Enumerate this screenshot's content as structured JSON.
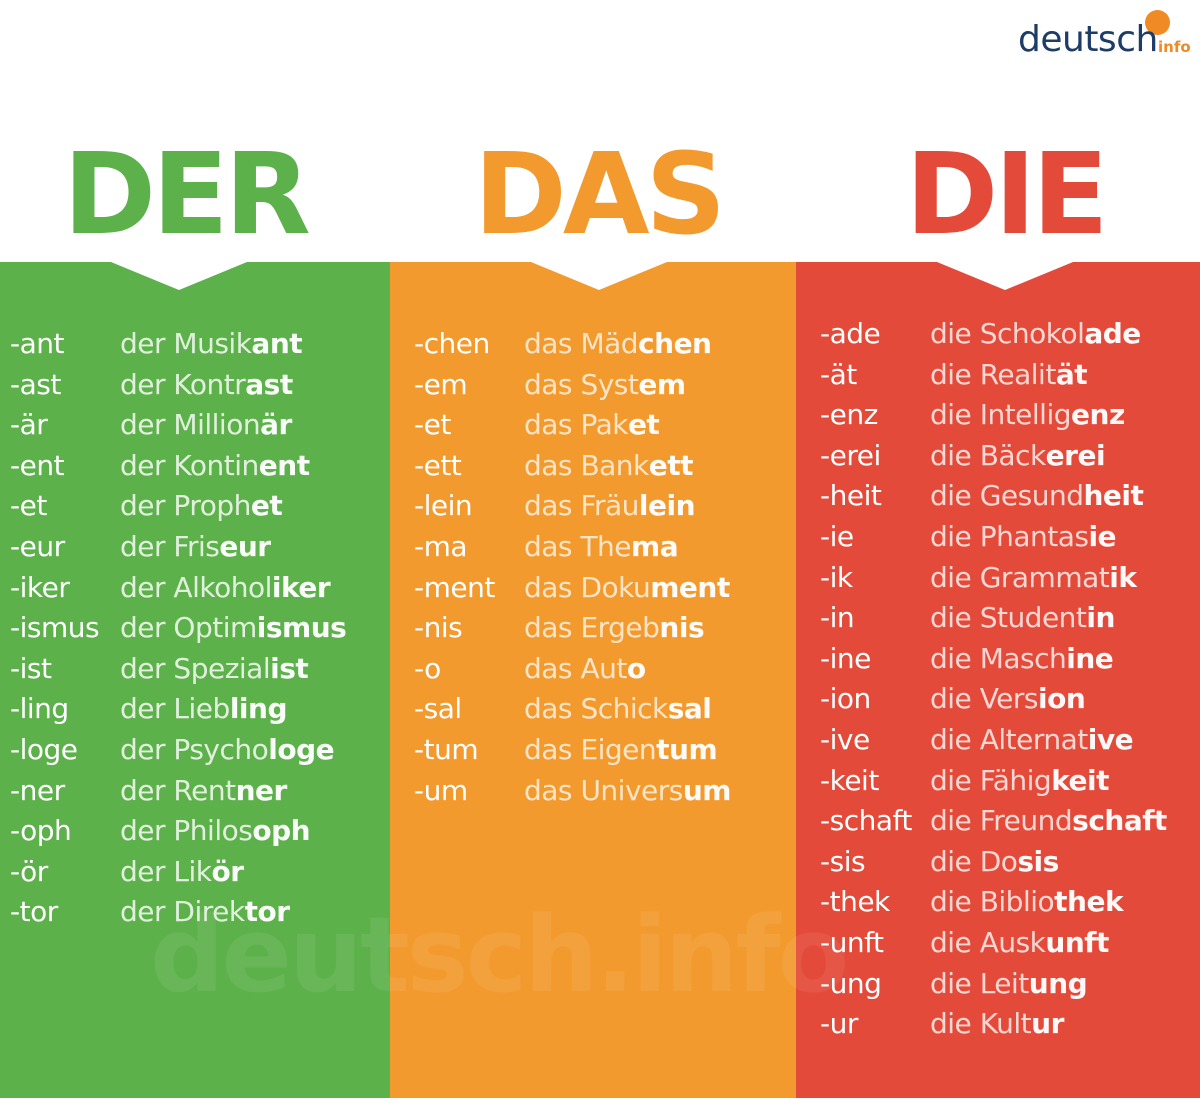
{
  "logo": {
    "word": "deutsch",
    "sub": "info",
    "word_color": "#1d3c68",
    "accent": "#f08a24"
  },
  "colors": {
    "green": "#5db14b",
    "orange": "#f39a2f",
    "red": "#e44a39"
  },
  "headings": {
    "der": "DER",
    "das": "DAS",
    "die": "DIE"
  },
  "watermark": "deutsch.info",
  "columns": {
    "der": {
      "article": "der",
      "rows": [
        {
          "suffix": "-ant",
          "base": "Musik",
          "ending": "ant"
        },
        {
          "suffix": "-ast",
          "base": "Kontr",
          "ending": "ast"
        },
        {
          "suffix": "-är",
          "base": "Million",
          "ending": "är"
        },
        {
          "suffix": "-ent",
          "base": "Kontin",
          "ending": "ent"
        },
        {
          "suffix": "-et",
          "base": "Proph",
          "ending": "et"
        },
        {
          "suffix": "-eur",
          "base": "Fris",
          "ending": "eur"
        },
        {
          "suffix": "-iker",
          "base": "Alkohol",
          "ending": "iker"
        },
        {
          "suffix": "-ismus",
          "base": "Optim",
          "ending": "ismus"
        },
        {
          "suffix": "-ist",
          "base": "Spezial",
          "ending": "ist"
        },
        {
          "suffix": "-ling",
          "base": "Lieb",
          "ending": "ling"
        },
        {
          "suffix": "-loge",
          "base": "Psycho",
          "ending": "loge"
        },
        {
          "suffix": "-ner",
          "base": "Rent",
          "ending": "ner"
        },
        {
          "suffix": "-oph",
          "base": "Philos",
          "ending": "oph"
        },
        {
          "suffix": "-ör",
          "base": "Lik",
          "ending": "ör"
        },
        {
          "suffix": "-tor",
          "base": "Direk",
          "ending": "tor"
        }
      ]
    },
    "das": {
      "article": "das",
      "rows": [
        {
          "suffix": "-chen",
          "base": "Mäd",
          "ending": "chen"
        },
        {
          "suffix": "-em",
          "base": "Syst",
          "ending": "em"
        },
        {
          "suffix": "-et",
          "base": "Pak",
          "ending": "et"
        },
        {
          "suffix": "-ett",
          "base": "Bank",
          "ending": "ett"
        },
        {
          "suffix": "-lein",
          "base": "Fräu",
          "ending": "lein"
        },
        {
          "suffix": "-ma",
          "base": "The",
          "ending": "ma"
        },
        {
          "suffix": "-ment",
          "base": "Doku",
          "ending": "ment"
        },
        {
          "suffix": "-nis",
          "base": "Ergeb",
          "ending": "nis"
        },
        {
          "suffix": "-o",
          "base": "Aut",
          "ending": "o"
        },
        {
          "suffix": "-sal",
          "base": "Schick",
          "ending": "sal"
        },
        {
          "suffix": "-tum",
          "base": "Eigen",
          "ending": "tum"
        },
        {
          "suffix": "-um",
          "base": "Univers",
          "ending": "um"
        }
      ]
    },
    "die": {
      "article": "die",
      "rows": [
        {
          "suffix": "-ade",
          "base": "Schokol",
          "ending": "ade"
        },
        {
          "suffix": "-ät",
          "base": "Realit",
          "ending": "ät"
        },
        {
          "suffix": "-enz",
          "base": "Intellig",
          "ending": "enz"
        },
        {
          "suffix": "-erei",
          "base": "Bäck",
          "ending": "erei"
        },
        {
          "suffix": "-heit",
          "base": "Gesund",
          "ending": "heit"
        },
        {
          "suffix": "-ie",
          "base": "Phantas",
          "ending": "ie"
        },
        {
          "suffix": "-ik",
          "base": "Grammat",
          "ending": "ik"
        },
        {
          "suffix": "-in",
          "base": "Student",
          "ending": "in"
        },
        {
          "suffix": "-ine",
          "base": "Masch",
          "ending": "ine"
        },
        {
          "suffix": "-ion",
          "base": "Vers",
          "ending": "ion"
        },
        {
          "suffix": "-ive",
          "base": "Alternat",
          "ending": "ive"
        },
        {
          "suffix": "-keit",
          "base": "Fähig",
          "ending": "keit"
        },
        {
          "suffix": "-schaft",
          "base": "Freund",
          "ending": "schaft"
        },
        {
          "suffix": "-sis",
          "base": "Do",
          "ending": "sis"
        },
        {
          "suffix": "-thek",
          "base": "Biblio",
          "ending": "thek"
        },
        {
          "suffix": "-unft",
          "base": "Ausk",
          "ending": "unft"
        },
        {
          "suffix": "-ung",
          "base": "Leit",
          "ending": "ung"
        },
        {
          "suffix": "-ur",
          "base": "Kult",
          "ending": "ur"
        }
      ]
    }
  }
}
